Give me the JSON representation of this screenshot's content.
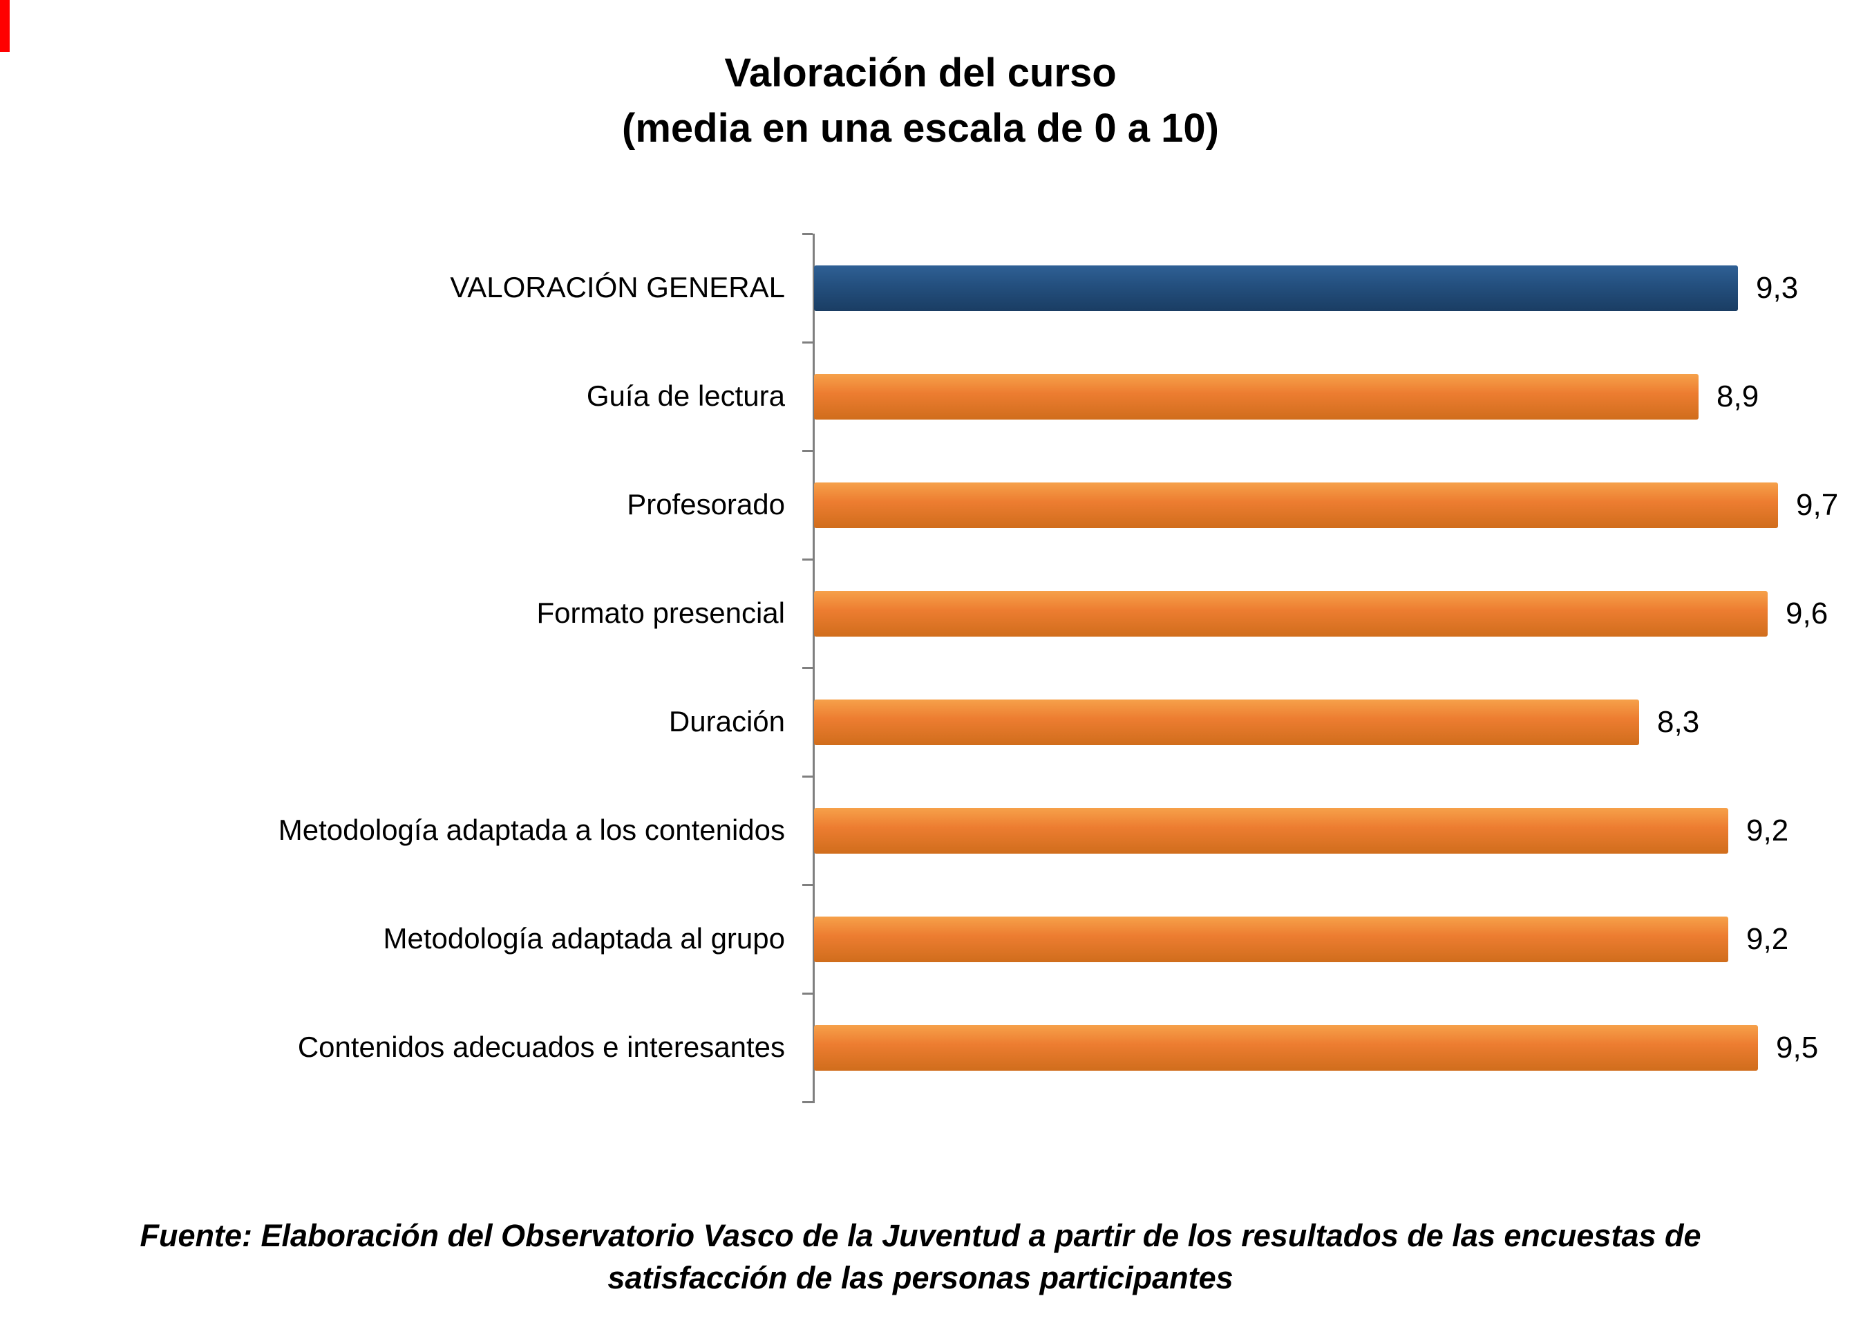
{
  "page": {
    "background": "#ffffff",
    "corner_mark_color": "#ff0000"
  },
  "chart_data": {
    "type": "bar",
    "orientation": "horizontal",
    "title_line1": "Valoración del curso",
    "title_line2": "(media en una escala de 0 a 10)",
    "xlabel": "",
    "ylabel": "",
    "xlim": [
      0,
      10
    ],
    "grid": false,
    "legend": "none",
    "categories": [
      "VALORACIÓN GENERAL",
      "Guía de lectura",
      "Profesorado",
      "Formato presencial",
      "Duración",
      "Metodología adaptada a los contenidos",
      "Metodología adaptada al grupo",
      "Contenidos adecuados e interesantes"
    ],
    "values": [
      9.3,
      8.9,
      9.7,
      9.6,
      8.3,
      9.2,
      9.2,
      9.5
    ],
    "value_labels": [
      "9,3",
      "8,9",
      "9,7",
      "9,6",
      "8,3",
      "9,2",
      "9,2",
      "9,5"
    ],
    "bar_colors": [
      "#1F4E79",
      "#ED7D31",
      "#ED7D31",
      "#ED7D31",
      "#ED7D31",
      "#ED7D31",
      "#ED7D31",
      "#ED7D31"
    ],
    "accent_orange": "#ED7D31",
    "accent_navy": "#1F4E79",
    "axis_color": "#7f7f7f",
    "source_line1": "Fuente: Elaboración del Observatorio Vasco de la Juventud a partir de los resultados de las encuestas de",
    "source_line2": "satisfacción de las personas participantes"
  }
}
